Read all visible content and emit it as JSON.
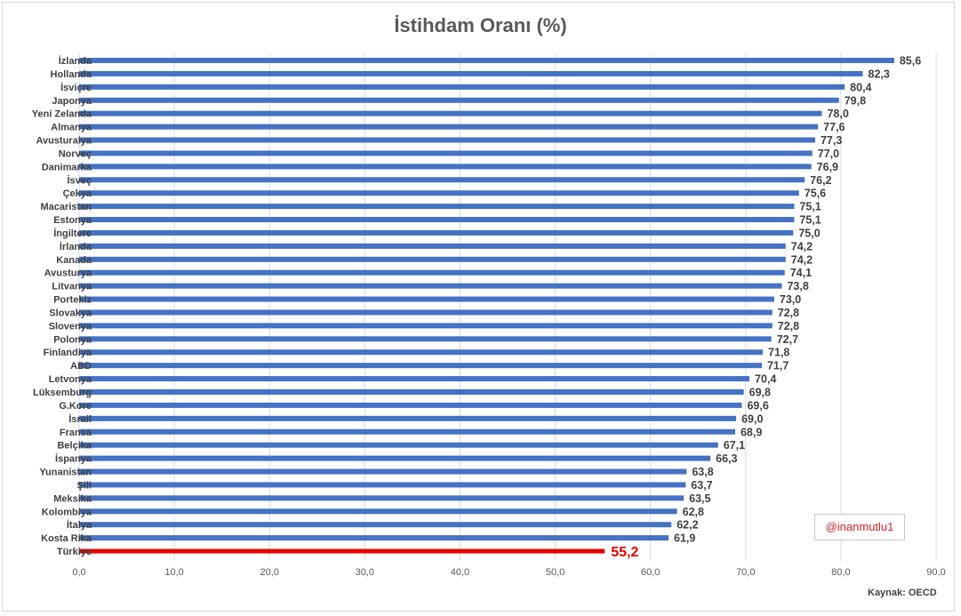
{
  "chart_data": {
    "type": "bar",
    "orientation": "horizontal",
    "title": "İstihdam Oranı (%)",
    "categories": [
      "İzlanda",
      "Hollanda",
      "İsviçre",
      "Japonya",
      "Yeni Zelanda",
      "Almanya",
      "Avusturalya",
      "Norveç",
      "Danimarka",
      "İsveç",
      "Çekya",
      "Macaristan",
      "Estonya",
      "İngiltere",
      "İrlanda",
      "Kanada",
      "Avusturya",
      "Litvanya",
      "Portekiz",
      "Slovakya",
      "Slovenya",
      "Polonya",
      "Finlandiya",
      "ABD",
      "Letvonya",
      "Lüksemburg",
      "G.Kore",
      "İsrail",
      "Fransa",
      "Belçika",
      "İspanya",
      "Yunanistan",
      "Şili",
      "Meksika",
      "Kolombiya",
      "İtalya",
      "Kosta Rika",
      "Türkiye"
    ],
    "values": [
      85.6,
      82.3,
      80.4,
      79.8,
      78.0,
      77.6,
      77.3,
      77.0,
      76.9,
      76.2,
      75.6,
      75.1,
      75.1,
      75.0,
      74.2,
      74.2,
      74.1,
      73.8,
      73.0,
      72.8,
      72.8,
      72.7,
      71.8,
      71.7,
      70.4,
      69.8,
      69.6,
      69.0,
      68.9,
      67.1,
      66.3,
      63.8,
      63.7,
      63.5,
      62.8,
      62.2,
      61.9,
      55.2
    ],
    "value_labels": [
      "85,6",
      "82,3",
      "80,4",
      "79,8",
      "78,0",
      "77,6",
      "77,3",
      "77,0",
      "76,9",
      "76,2",
      "75,6",
      "75,1",
      "75,1",
      "75,0",
      "74,2",
      "74,2",
      "74,1",
      "73,8",
      "73,0",
      "72,8",
      "72,8",
      "72,7",
      "71,8",
      "71,7",
      "70,4",
      "69,8",
      "69,6",
      "69,0",
      "68,9",
      "67,1",
      "66,3",
      "63,8",
      "63,7",
      "63,5",
      "62,8",
      "62,2",
      "61,9",
      "55,2"
    ],
    "highlight_category": "Türkiye",
    "xlim": [
      0,
      90
    ],
    "x_ticks": [
      "0,0",
      "10,0",
      "20,0",
      "30,0",
      "40,0",
      "50,0",
      "60,0",
      "70,0",
      "80,0",
      "90,0"
    ],
    "grid": "vertical",
    "colors": {
      "bar": "#4472c4",
      "highlight": "#e60000",
      "grid": "#d9d9d9"
    },
    "annotation": "@inanmutlu1",
    "source": "Kaynak: OECD"
  }
}
